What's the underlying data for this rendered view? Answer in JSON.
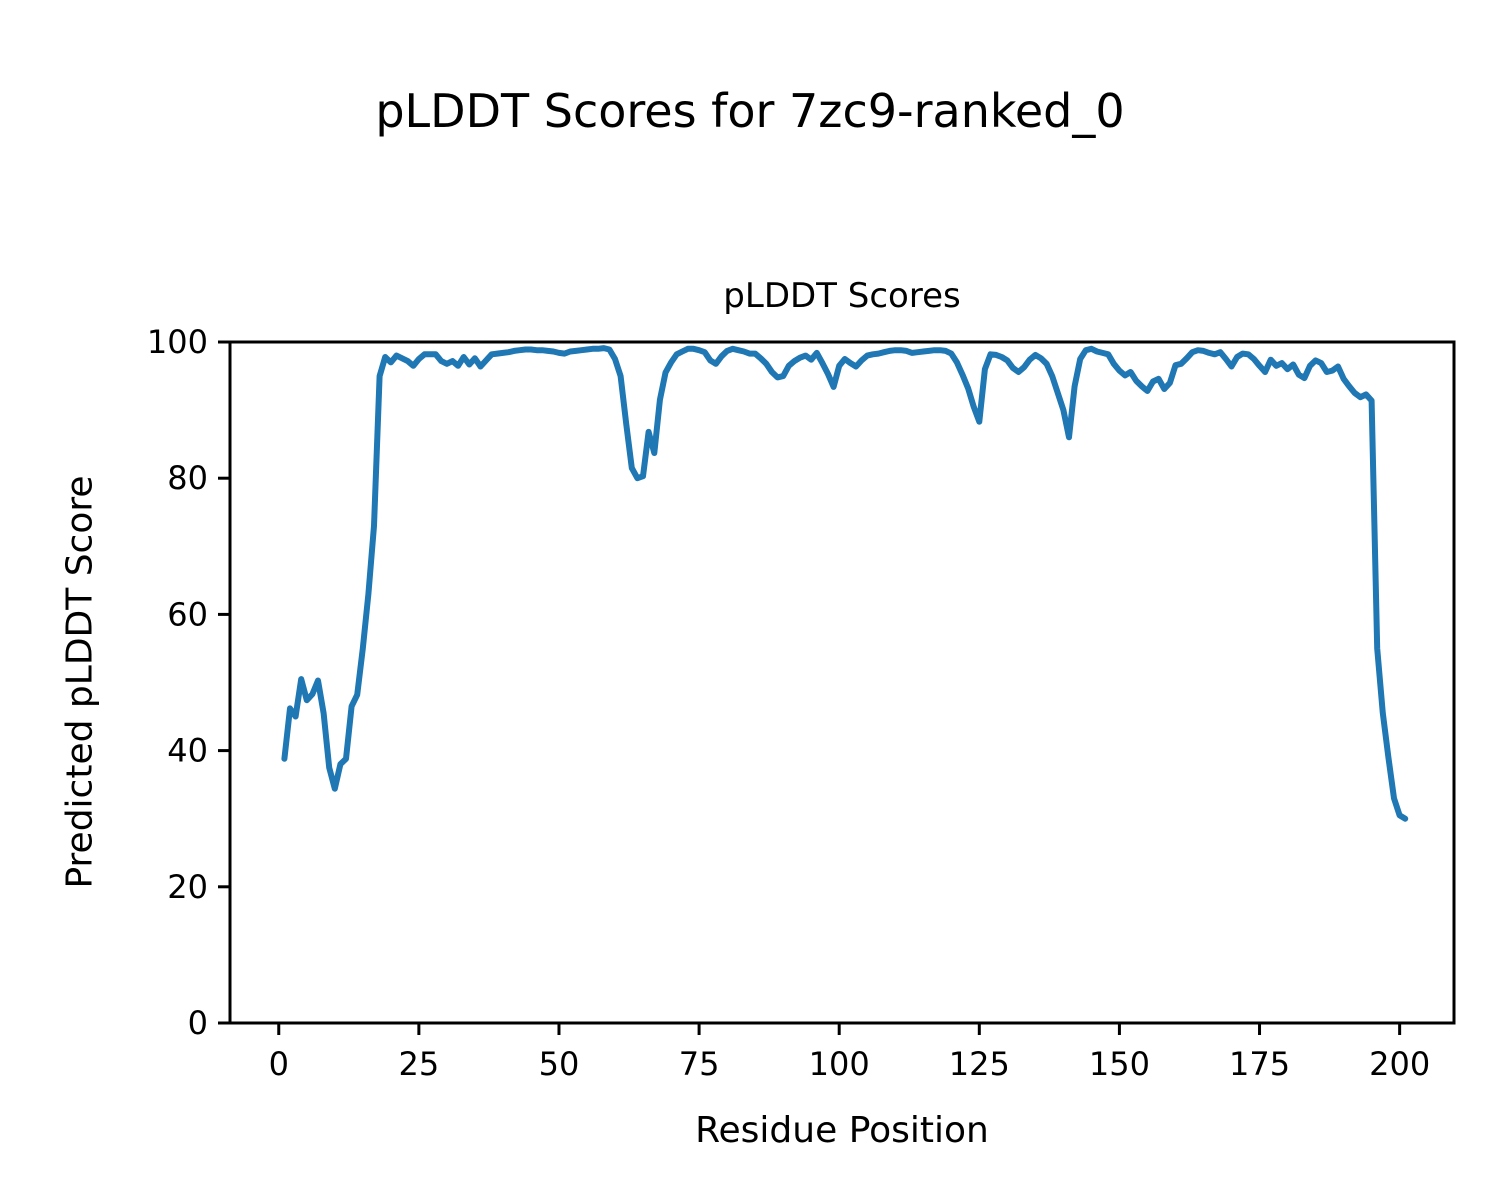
{
  "figure": {
    "suptitle": "pLDDT Scores for 7zc9-ranked_0",
    "background": "#ffffff"
  },
  "chart_data": {
    "type": "line",
    "title": "pLDDT Scores",
    "xlabel": "Residue Position",
    "ylabel": "Predicted pLDDT Score",
    "xlim": [
      -8.7,
      209.7
    ],
    "ylim": [
      0,
      100
    ],
    "xticks": [
      0,
      25,
      50,
      75,
      100,
      125,
      150,
      175,
      200
    ],
    "yticks": [
      0,
      20,
      40,
      60,
      80,
      100
    ],
    "grid": false,
    "legend": "none",
    "line_color": "#1f77b4",
    "line_width": 6,
    "series": [
      {
        "name": "pLDDT",
        "x": [
          1,
          2,
          3,
          4,
          5,
          6,
          7,
          8,
          9,
          10,
          11,
          12,
          13,
          14,
          15,
          16,
          17,
          18,
          19,
          20,
          21,
          22,
          23,
          24,
          25,
          26,
          27,
          28,
          29,
          30,
          31,
          32,
          33,
          34,
          35,
          36,
          37,
          38,
          39,
          40,
          41,
          42,
          43,
          44,
          45,
          46,
          47,
          48,
          49,
          50,
          51,
          52,
          53,
          54,
          55,
          56,
          57,
          58,
          59,
          60,
          61,
          62,
          63,
          64,
          65,
          66,
          67,
          68,
          69,
          70,
          71,
          72,
          73,
          74,
          75,
          76,
          77,
          78,
          79,
          80,
          81,
          82,
          83,
          84,
          85,
          86,
          87,
          88,
          89,
          90,
          91,
          92,
          93,
          94,
          95,
          96,
          97,
          98,
          99,
          100,
          101,
          102,
          103,
          104,
          105,
          106,
          107,
          108,
          109,
          110,
          111,
          112,
          113,
          114,
          115,
          116,
          117,
          118,
          119,
          120,
          121,
          122,
          123,
          124,
          125,
          126,
          127,
          128,
          129,
          130,
          131,
          132,
          133,
          134,
          135,
          136,
          137,
          138,
          139,
          140,
          141,
          142,
          143,
          144,
          145,
          146,
          147,
          148,
          149,
          150,
          151,
          152,
          153,
          154,
          155,
          156,
          157,
          158,
          159,
          160,
          161,
          162,
          163,
          164,
          165,
          166,
          167,
          168,
          169,
          170,
          171,
          172,
          173,
          174,
          175,
          176,
          177,
          178,
          179,
          180,
          181,
          182,
          183,
          184,
          185,
          186,
          187,
          188,
          189,
          190,
          191,
          192,
          193,
          194,
          195,
          196,
          197,
          198,
          199,
          200,
          201
        ],
        "y": [
          38.8,
          46.2,
          45.0,
          50.5,
          47.4,
          48.3,
          50.3,
          45.5,
          37.5,
          34.4,
          38.0,
          38.8,
          46.5,
          48.2,
          55.0,
          63.0,
          73.0,
          95.0,
          97.8,
          97.0,
          98.0,
          97.6,
          97.2,
          96.5,
          97.5,
          98.2,
          98.2,
          98.2,
          97.2,
          96.8,
          97.2,
          96.5,
          97.8,
          96.7,
          97.6,
          96.4,
          97.3,
          98.2,
          98.3,
          98.4,
          98.5,
          98.7,
          98.8,
          98.9,
          98.9,
          98.8,
          98.8,
          98.7,
          98.6,
          98.4,
          98.3,
          98.6,
          98.7,
          98.8,
          98.9,
          99.0,
          99.0,
          99.1,
          98.9,
          97.5,
          95.0,
          88.0,
          81.5,
          80.0,
          80.3,
          86.8,
          83.7,
          91.5,
          95.5,
          97.0,
          98.2,
          98.6,
          99.0,
          99.0,
          98.8,
          98.5,
          97.3,
          96.8,
          97.9,
          98.7,
          99.0,
          98.8,
          98.6,
          98.3,
          98.3,
          97.6,
          96.8,
          95.6,
          94.8,
          95.0,
          96.5,
          97.2,
          97.7,
          98.0,
          97.4,
          98.4,
          96.9,
          95.3,
          93.4,
          96.5,
          97.5,
          96.9,
          96.4,
          97.3,
          98.0,
          98.2,
          98.3,
          98.5,
          98.7,
          98.8,
          98.8,
          98.7,
          98.4,
          98.5,
          98.6,
          98.7,
          98.8,
          98.8,
          98.7,
          98.3,
          97.0,
          95.2,
          93.2,
          90.5,
          88.3,
          96.0,
          98.2,
          98.1,
          97.8,
          97.3,
          96.2,
          95.6,
          96.3,
          97.4,
          98.1,
          97.6,
          96.8,
          95.0,
          92.5,
          90.0,
          86.0,
          93.5,
          97.5,
          98.8,
          99.0,
          98.6,
          98.4,
          98.2,
          96.8,
          95.8,
          95.1,
          95.6,
          94.3,
          93.5,
          92.8,
          94.2,
          94.6,
          93.1,
          94.0,
          96.6,
          96.8,
          97.6,
          98.5,
          98.8,
          98.7,
          98.4,
          98.2,
          98.5,
          97.5,
          96.4,
          97.8,
          98.3,
          98.2,
          97.5,
          96.5,
          95.6,
          97.4,
          96.5,
          96.9,
          96.0,
          96.7,
          95.2,
          94.7,
          96.5,
          97.3,
          96.9,
          95.6,
          95.8,
          96.4,
          94.6,
          93.5,
          92.5,
          91.9,
          92.3,
          91.4,
          55.0,
          45.5,
          39.0,
          33.0,
          30.5,
          30.0
        ]
      }
    ]
  }
}
